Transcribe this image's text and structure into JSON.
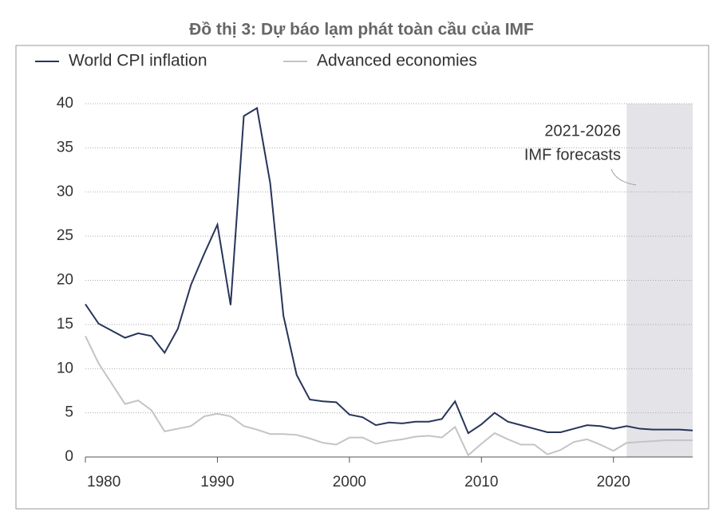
{
  "chart_data": {
    "type": "line",
    "title": "Đồ thị 3: Dự báo lạm phát toàn cầu của IMF",
    "annotation": [
      "2021-2026",
      "IMF forecasts"
    ],
    "shaded_region": [
      2021,
      2026
    ],
    "x": [
      1980,
      1981,
      1982,
      1983,
      1984,
      1985,
      1986,
      1987,
      1988,
      1989,
      1990,
      1991,
      1992,
      1993,
      1994,
      1995,
      1996,
      1997,
      1998,
      1999,
      2000,
      2001,
      2002,
      2003,
      2004,
      2005,
      2006,
      2007,
      2008,
      2009,
      2010,
      2011,
      2012,
      2013,
      2014,
      2015,
      2016,
      2017,
      2018,
      2019,
      2020,
      2021,
      2022,
      2023,
      2024,
      2025,
      2026
    ],
    "series": [
      {
        "name": "World CPI inflation",
        "color": "#27355a",
        "values": [
          17.3,
          15.1,
          14.3,
          13.5,
          14.0,
          13.7,
          11.8,
          14.5,
          19.5,
          23.0,
          26.3,
          17.2,
          38.6,
          39.5,
          31.0,
          16.0,
          9.3,
          6.5,
          6.3,
          6.2,
          4.8,
          4.5,
          3.6,
          3.9,
          3.8,
          4.0,
          4.0,
          4.3,
          6.3,
          2.7,
          3.7,
          5.0,
          4.0,
          3.6,
          3.2,
          2.8,
          2.8,
          3.2,
          3.6,
          3.5,
          3.2,
          3.5,
          3.2,
          3.1,
          3.1,
          3.1,
          3.0
        ]
      },
      {
        "name": "Advanced economies",
        "color": "#c4c4c4",
        "values": [
          13.7,
          10.6,
          8.3,
          6.0,
          6.4,
          5.3,
          2.9,
          3.2,
          3.5,
          4.6,
          4.9,
          4.6,
          3.5,
          3.1,
          2.6,
          2.6,
          2.5,
          2.1,
          1.6,
          1.4,
          2.2,
          2.2,
          1.5,
          1.8,
          2.0,
          2.3,
          2.4,
          2.2,
          3.4,
          0.2,
          1.5,
          2.7,
          2.0,
          1.4,
          1.4,
          0.3,
          0.8,
          1.7,
          2.0,
          1.4,
          0.7,
          1.6,
          1.7,
          1.8,
          1.9,
          1.9,
          1.9
        ]
      }
    ],
    "xlim": [
      1980,
      2026
    ],
    "xticks": [
      1980,
      1990,
      2000,
      2010,
      2020
    ],
    "ylim": [
      0,
      40
    ],
    "yticks": [
      0,
      5,
      10,
      15,
      20,
      25,
      30,
      35,
      40
    ],
    "grid": true
  }
}
